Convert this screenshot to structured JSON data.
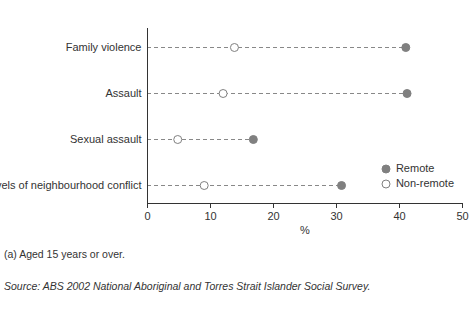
{
  "chart_data": {
    "type": "dot",
    "orientation": "horizontal",
    "categories": [
      "Family violence",
      "Assault",
      "Sexual assault",
      "Levels of neighbourhood conflict"
    ],
    "series": [
      {
        "name": "Remote",
        "color": "#808080",
        "marker": "filled",
        "values": [
          41,
          41.2,
          16.8,
          30.8
        ]
      },
      {
        "name": "Non-remote",
        "color": "#808080",
        "marker": "open",
        "values": [
          13.8,
          12,
          4.8,
          9
        ]
      }
    ],
    "xlabel": "%",
    "xlim": [
      0,
      50
    ],
    "xticks": [
      0,
      10,
      20,
      30,
      40,
      50
    ],
    "line_style": "dashed",
    "legend": "lower right",
    "footnote": "(a) Aged 15 years or over.",
    "source": "Source: ABS 2002 National Aboriginal and Torres Strait Islander Social Survey."
  }
}
